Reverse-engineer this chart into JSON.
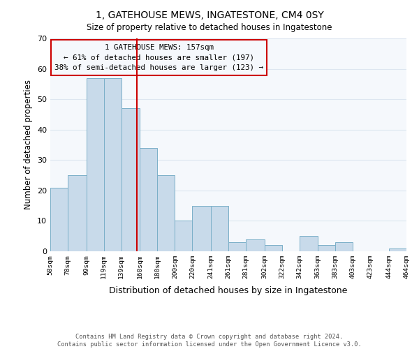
{
  "title": "1, GATEHOUSE MEWS, INGATESTONE, CM4 0SY",
  "subtitle": "Size of property relative to detached houses in Ingatestone",
  "xlabel": "Distribution of detached houses by size in Ingatestone",
  "ylabel": "Number of detached properties",
  "bar_edges": [
    58,
    78,
    99,
    119,
    139,
    160,
    180,
    200,
    220,
    241,
    261,
    281,
    302,
    322,
    342,
    363,
    383,
    403,
    423,
    444,
    464
  ],
  "bar_heights": [
    21,
    25,
    57,
    57,
    47,
    34,
    25,
    10,
    15,
    15,
    3,
    4,
    2,
    0,
    5,
    2,
    3,
    0,
    0,
    1
  ],
  "bar_color": "#c8daea",
  "bar_edge_color": "#7aafc8",
  "reference_line_x": 157,
  "reference_line_color": "#cc0000",
  "annotation_box_text": "1 GATEHOUSE MEWS: 157sqm\n← 61% of detached houses are smaller (197)\n38% of semi-detached houses are larger (123) →",
  "annotation_box_color": "#cc0000",
  "ylim": [
    0,
    70
  ],
  "yticks": [
    0,
    10,
    20,
    30,
    40,
    50,
    60,
    70
  ],
  "xtick_labels": [
    "58sqm",
    "78sqm",
    "99sqm",
    "119sqm",
    "139sqm",
    "160sqm",
    "180sqm",
    "200sqm",
    "220sqm",
    "241sqm",
    "261sqm",
    "281sqm",
    "302sqm",
    "322sqm",
    "342sqm",
    "363sqm",
    "383sqm",
    "403sqm",
    "423sqm",
    "444sqm",
    "464sqm"
  ],
  "footnote": "Contains HM Land Registry data © Crown copyright and database right 2024.\nContains public sector information licensed under the Open Government Licence v3.0.",
  "bg_color": "#ffffff",
  "plot_bg_color": "#f5f8fc",
  "grid_color": "#dde6f0"
}
